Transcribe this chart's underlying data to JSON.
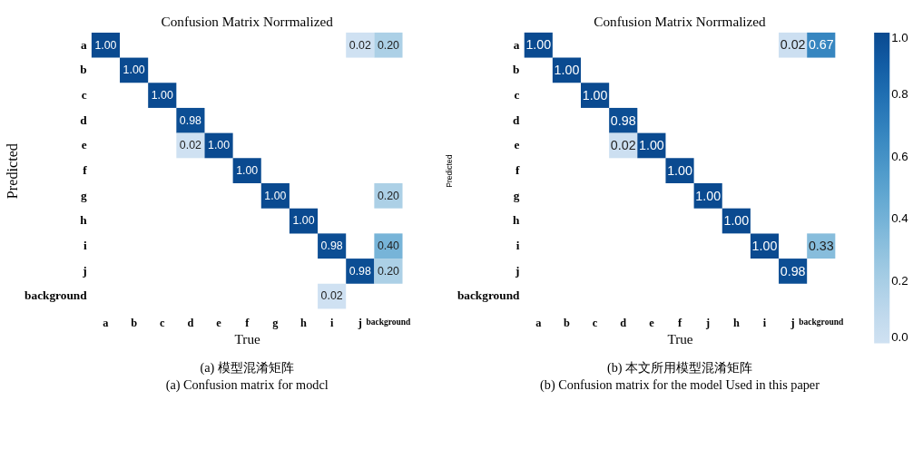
{
  "chart_data": [
    {
      "type": "heatmap",
      "title": "Confusion Matrix Norrmalized",
      "xlabel": "True",
      "ylabel": "Predicted",
      "categories": [
        "a",
        "b",
        "c",
        "d",
        "e",
        "f",
        "g",
        "h",
        "i",
        "j",
        "background"
      ],
      "y_categories": [
        "a",
        "b",
        "c",
        "d",
        "e",
        "f",
        "g",
        "h",
        "i",
        "j",
        "background"
      ],
      "cells": [
        [
          1.0,
          null,
          null,
          null,
          null,
          null,
          null,
          null,
          null,
          0.02,
          0.2
        ],
        [
          null,
          1.0,
          null,
          null,
          null,
          null,
          null,
          null,
          null,
          null,
          null
        ],
        [
          null,
          null,
          1.0,
          null,
          null,
          null,
          null,
          null,
          null,
          null,
          null
        ],
        [
          null,
          null,
          null,
          0.98,
          null,
          null,
          null,
          null,
          null,
          null,
          null
        ],
        [
          null,
          null,
          null,
          0.02,
          1.0,
          null,
          null,
          null,
          null,
          null,
          null
        ],
        [
          null,
          null,
          null,
          null,
          null,
          1.0,
          null,
          null,
          null,
          null,
          null
        ],
        [
          null,
          null,
          null,
          null,
          null,
          null,
          1.0,
          null,
          null,
          null,
          0.2
        ],
        [
          null,
          null,
          null,
          null,
          null,
          null,
          null,
          1.0,
          null,
          null,
          null
        ],
        [
          null,
          null,
          null,
          null,
          null,
          null,
          null,
          null,
          0.98,
          null,
          0.4
        ],
        [
          null,
          null,
          null,
          null,
          null,
          null,
          null,
          null,
          null,
          0.98,
          0.2
        ],
        [
          null,
          null,
          null,
          null,
          null,
          null,
          null,
          null,
          0.02,
          null,
          null
        ]
      ],
      "cell_labels": [
        [
          "1.00",
          null,
          null,
          null,
          null,
          null,
          null,
          null,
          null,
          "0.02",
          "0.20"
        ],
        [
          null,
          "1.00",
          null,
          null,
          null,
          null,
          null,
          null,
          null,
          null,
          null
        ],
        [
          null,
          null,
          "1.00",
          null,
          null,
          null,
          null,
          null,
          null,
          null,
          null
        ],
        [
          null,
          null,
          null,
          "0.98",
          null,
          null,
          null,
          null,
          null,
          null,
          null
        ],
        [
          null,
          null,
          null,
          "0.02",
          "1.00",
          null,
          null,
          null,
          null,
          null,
          null
        ],
        [
          null,
          null,
          null,
          null,
          null,
          "1.00",
          null,
          null,
          null,
          null,
          null
        ],
        [
          null,
          null,
          null,
          null,
          null,
          null,
          "1.00",
          null,
          null,
          null,
          "0.20"
        ],
        [
          null,
          null,
          null,
          null,
          null,
          null,
          null,
          "1.00",
          null,
          null,
          null
        ],
        [
          null,
          null,
          null,
          null,
          null,
          null,
          null,
          null,
          "0.98",
          null,
          "0.40"
        ],
        [
          null,
          null,
          null,
          null,
          null,
          null,
          null,
          null,
          null,
          "0.98",
          "0.20"
        ],
        [
          null,
          null,
          null,
          null,
          null,
          null,
          null,
          null,
          "0.02",
          null,
          null
        ]
      ],
      "annotations": [
        "(a) 模型混淆矩阵",
        "(a) Confusion matrix for modcl"
      ]
    },
    {
      "type": "heatmap",
      "title": "Confusion Matrix Norrmalized",
      "xlabel": "True",
      "ylabel": "Predicted",
      "categories": [
        "a",
        "b",
        "c",
        "d",
        "e",
        "f",
        "j",
        "h",
        "i",
        "j",
        "background"
      ],
      "y_categories": [
        "a",
        "b",
        "c",
        "d",
        "e",
        "f",
        "g",
        "h",
        "i",
        "j",
        "background"
      ],
      "cells": [
        [
          1.0,
          null,
          null,
          null,
          null,
          null,
          null,
          null,
          null,
          0.02,
          0.67
        ],
        [
          null,
          1.0,
          null,
          null,
          null,
          null,
          null,
          null,
          null,
          null,
          null
        ],
        [
          null,
          null,
          1.0,
          null,
          null,
          null,
          null,
          null,
          null,
          null,
          null
        ],
        [
          null,
          null,
          null,
          0.98,
          null,
          null,
          null,
          null,
          null,
          null,
          null
        ],
        [
          null,
          null,
          null,
          0.02,
          1.0,
          null,
          null,
          null,
          null,
          null,
          null
        ],
        [
          null,
          null,
          null,
          null,
          null,
          1.0,
          null,
          null,
          null,
          null,
          null
        ],
        [
          null,
          null,
          null,
          null,
          null,
          null,
          1.0,
          null,
          null,
          null,
          null
        ],
        [
          null,
          null,
          null,
          null,
          null,
          null,
          null,
          1.0,
          null,
          null,
          null
        ],
        [
          null,
          null,
          null,
          null,
          null,
          null,
          null,
          null,
          1.0,
          null,
          0.33
        ],
        [
          null,
          null,
          null,
          null,
          null,
          null,
          null,
          null,
          null,
          0.98,
          null
        ],
        [
          null,
          null,
          null,
          null,
          null,
          null,
          null,
          null,
          null,
          null,
          null
        ]
      ],
      "cell_labels": [
        [
          "1.00",
          null,
          null,
          null,
          null,
          null,
          null,
          null,
          null,
          "0.02",
          "0.67"
        ],
        [
          null,
          "1.00",
          null,
          null,
          null,
          null,
          null,
          null,
          null,
          null,
          null
        ],
        [
          null,
          null,
          "1.00",
          null,
          null,
          null,
          null,
          null,
          null,
          null,
          null
        ],
        [
          null,
          null,
          null,
          "0.98",
          null,
          null,
          null,
          null,
          null,
          null,
          null
        ],
        [
          null,
          null,
          null,
          "0.02",
          "1.00",
          null,
          null,
          null,
          null,
          null,
          null
        ],
        [
          null,
          null,
          null,
          null,
          null,
          "1.00",
          null,
          null,
          null,
          null,
          null
        ],
        [
          null,
          null,
          null,
          null,
          null,
          null,
          "1.00",
          null,
          null,
          null,
          null
        ],
        [
          null,
          null,
          null,
          null,
          null,
          null,
          null,
          "1.00",
          null,
          null,
          null
        ],
        [
          null,
          null,
          null,
          null,
          null,
          null,
          null,
          null,
          "1.00",
          null,
          "0.33"
        ],
        [
          null,
          null,
          null,
          null,
          null,
          null,
          null,
          null,
          null,
          "0.98",
          null
        ],
        [
          null,
          null,
          null,
          null,
          null,
          null,
          null,
          null,
          null,
          null,
          null
        ]
      ],
      "clim": [
        0,
        1
      ],
      "cticks": [
        {
          "value": 0,
          "label": "0.0"
        },
        {
          "value": 0.2,
          "label": "0.2"
        },
        {
          "value": 0.4,
          "label": "0.4"
        },
        {
          "value": 0.6,
          "label": "0.6"
        },
        {
          "value": 0.8,
          "label": "0.8"
        },
        {
          "value": 1,
          "label": "1.0"
        }
      ],
      "annotations": [
        "(b) 本文所用模型混淆矩阵",
        "(b) Confusion matrix for the model Used in this paper"
      ]
    }
  ]
}
